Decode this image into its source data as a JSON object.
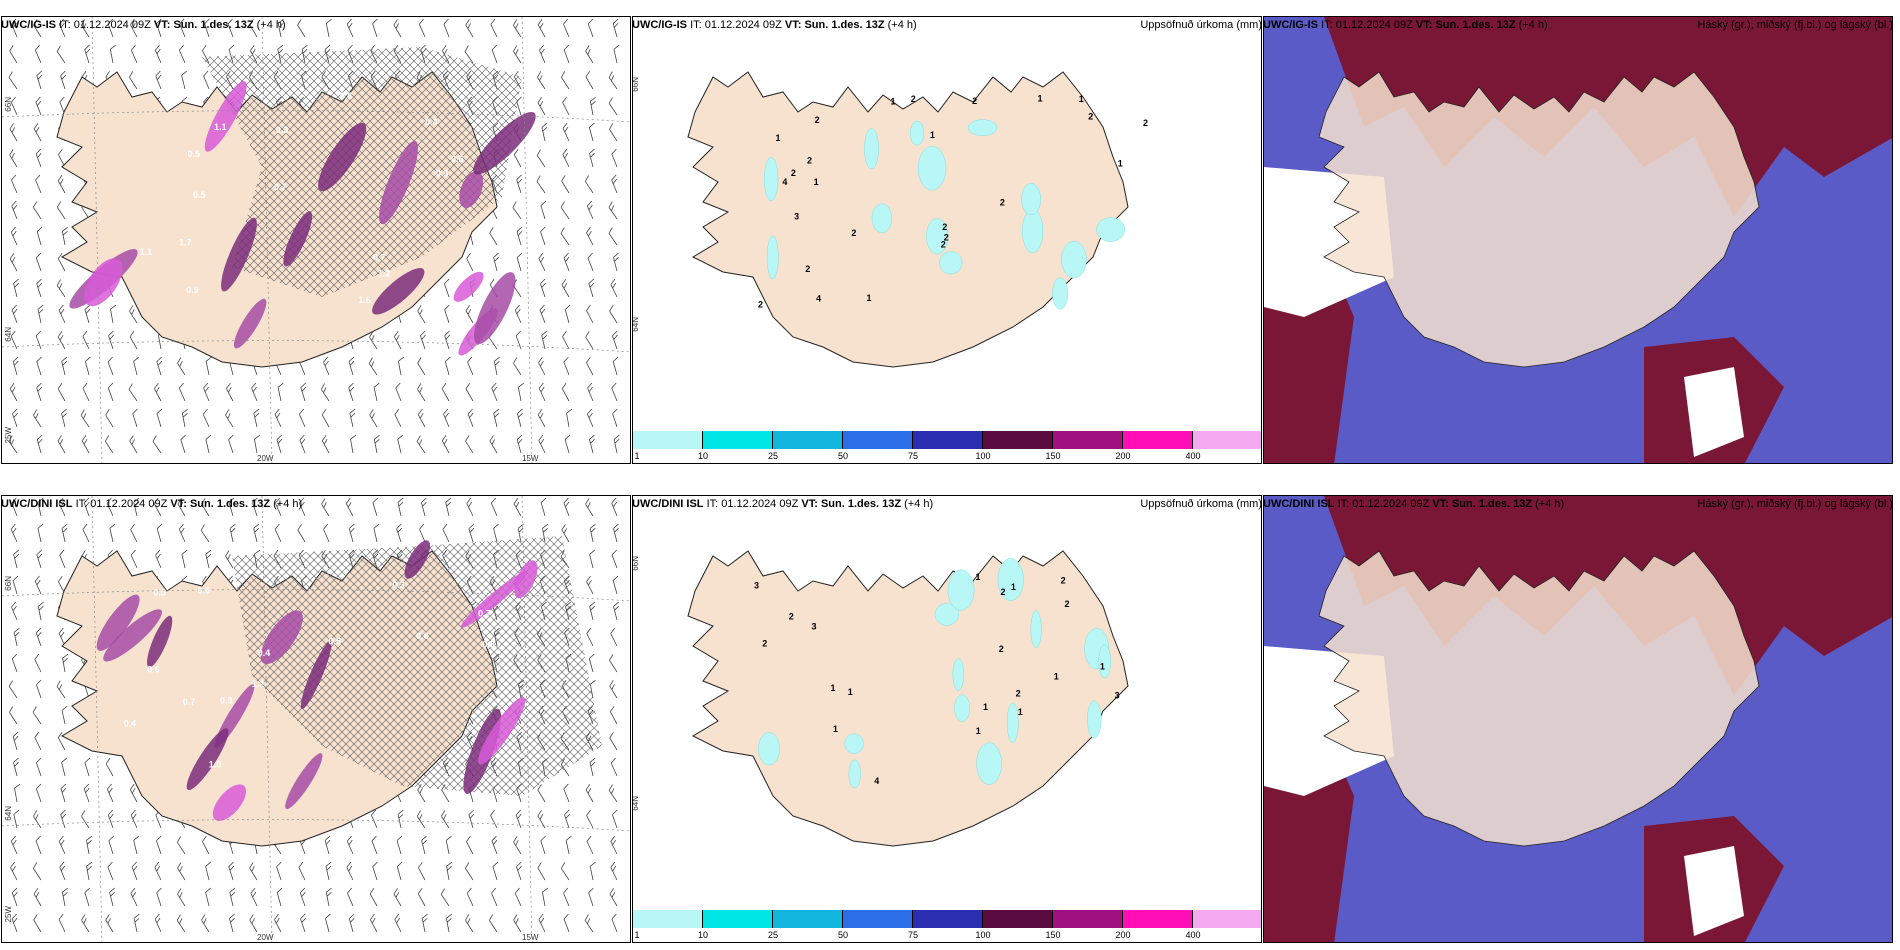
{
  "top": {
    "wind": {
      "model": "UWC/IG-IS",
      "it_label": "IT:",
      "it_value": "01.12.2024 09Z",
      "vt_label": "VT:",
      "vt_value": "Sun. 1.des. 13Z",
      "lead": "(+4 h)",
      "lat_labels": [
        "66N",
        "64N"
      ],
      "lon_labels": [
        "25W",
        "20W",
        "15W"
      ],
      "values": [
        "0.9",
        "0.7",
        "1.1",
        "0.5",
        "1.6",
        "0.4",
        "0.7",
        "0.6",
        "0.5",
        "1.7",
        "0.6",
        "1.1",
        "0.3",
        "0.4",
        "0.3",
        "1.2"
      ]
    },
    "precip": {
      "model": "UWC/IG-IS",
      "it_label": "IT:",
      "it_value": "01.12.2024 09Z",
      "vt_label": "VT:",
      "vt_value": "Sun. 1.des. 13Z",
      "lead": "(+4 h)",
      "right_title": "Uppsöfnuð úrkoma (mm)",
      "lat_labels": [
        "66N",
        "64N"
      ],
      "values": [
        "2",
        "1",
        "2",
        "4",
        "2",
        "1",
        "2",
        "1",
        "1",
        "3",
        "4",
        "2",
        "2",
        "2",
        "2",
        "1",
        "2",
        "2",
        "1",
        "1",
        "2",
        "2",
        "2",
        "1",
        "2"
      ]
    },
    "cloud": {
      "model": "UWC/IG-IS",
      "it_label": "IT:",
      "it_value": "01.12.2024 09Z",
      "vt_label": "VT:",
      "vt_value": "Sun. 1.des. 13Z",
      "lead": "(+4 h)",
      "right_title": "Háský (gr.), miðský (fj.bl.) og lágský (bl.)"
    }
  },
  "bottom": {
    "wind": {
      "model": "UWC/DINI ISL",
      "it_label": "IT:",
      "it_value": "01.12.2024 09Z",
      "vt_label": "VT:",
      "vt_value": "Sun. 1.des. 13Z",
      "lead": "(+4 h)",
      "lat_labels": [
        "66N",
        "64N"
      ],
      "lon_labels": [
        "25W",
        "20W",
        "15W"
      ],
      "values": [
        "0.5",
        "0.3",
        "1.0",
        "0.7",
        "0.5",
        "0.6",
        "0.7",
        "0.4",
        "0.3",
        "0.6",
        "1.2",
        "0.5",
        "0.4",
        "0.6"
      ]
    },
    "precip": {
      "model": "UWC/DINI ISL",
      "it_label": "IT:",
      "it_value": "01.12.2024 09Z",
      "vt_label": "VT:",
      "vt_value": "Sun. 1.des. 13Z",
      "lead": "(+4 h)",
      "right_title": "Uppsöfnuð úrkoma (mm)",
      "lat_labels": [
        "66N",
        "64N"
      ],
      "values": [
        "1",
        "1",
        "4",
        "3",
        "1",
        "2",
        "1",
        "1",
        "2",
        "2",
        "1",
        "3",
        "2",
        "3",
        "1",
        "1",
        "1",
        "2",
        "2",
        "1",
        "2"
      ]
    },
    "cloud": {
      "model": "UWC/DINI ISL",
      "it_label": "IT:",
      "it_value": "01.12.2024 09Z",
      "vt_label": "VT:",
      "vt_value": "Sun. 1.des. 13Z",
      "lead": "(+4 h)",
      "right_title": "Háský (gr.), miðský (fj.bl.) og lágský (bl.)"
    }
  },
  "colorbar": {
    "ticks": [
      "1",
      "10",
      "25",
      "50",
      "75",
      "100",
      "150",
      "200",
      "400"
    ],
    "colors": [
      "#b9f6f6",
      "#00e6e6",
      "#12b5dd",
      "#2b6ee8",
      "#2b2eb0",
      "#5a0b40",
      "#a01080",
      "#ff0fb5",
      "#f3a8f0"
    ]
  },
  "colors": {
    "land": "#f6e2cf",
    "sea": "#ffffff",
    "cloud_high": "#7a1737",
    "cloud_mid": "#5b5bc7",
    "cloud_low": "#6fa0e6",
    "snow": "#8c3b8c"
  }
}
